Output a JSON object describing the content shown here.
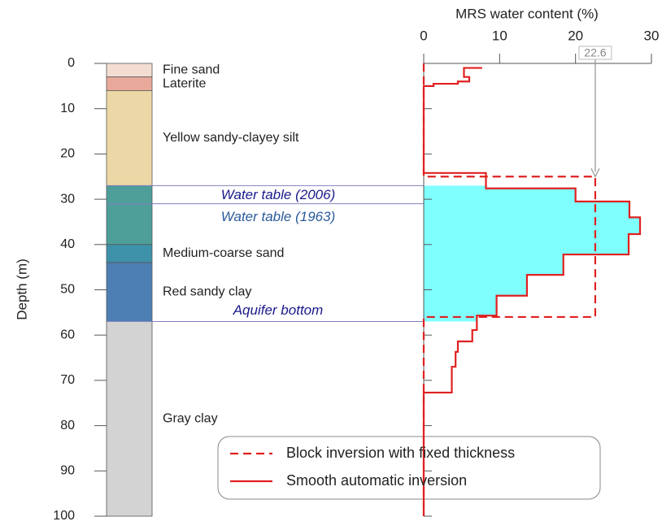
{
  "chart_data": {
    "type": "line",
    "xlabel": "MRS water content (%)",
    "ylabel": "Depth (m)",
    "xlim": [
      0,
      30
    ],
    "xticks": [
      0,
      10,
      20,
      30
    ],
    "ylim": [
      0,
      100
    ],
    "yticks": [
      0,
      10,
      20,
      30,
      40,
      50,
      60,
      70,
      80,
      90,
      100
    ],
    "y_inverted": true,
    "layers": [
      {
        "label": "Fine sand",
        "top": 0,
        "bottom": 3,
        "color": "#f3ddd3"
      },
      {
        "label": "Laterite",
        "top": 3,
        "bottom": 6,
        "color": "#e9a99a"
      },
      {
        "label": "Yellow sandy-clayey silt",
        "top": 6,
        "bottom": 27,
        "color": "#ecd8a6"
      },
      {
        "label": null,
        "top": 27,
        "bottom": 40,
        "color": "#4e9f9a"
      },
      {
        "label": "Medium-coarse sand",
        "top": 40,
        "bottom": 44,
        "color": "#3d92aa"
      },
      {
        "label": "Red sandy clay",
        "top": 44,
        "bottom": 57,
        "color": "#4d7fb5"
      },
      {
        "label": "Gray clay",
        "top": 57,
        "bottom": 100,
        "color": "#d3d3d3"
      }
    ],
    "horizons": [
      {
        "label": "Water table (2006)",
        "depth": 27,
        "color": "#1a1a8c"
      },
      {
        "label": "Water table (1963)",
        "depth": 31,
        "color": "#2a5a9a"
      },
      {
        "label": "Aquifer bottom",
        "depth": 57,
        "color": "#1a1a8c"
      }
    ],
    "fill_color": "#80ffff",
    "series": [
      {
        "name": "Block inversion with fixed thickness",
        "color": "#e02020",
        "style": "dashed",
        "depth": [
          0,
          25,
          25,
          56,
          56,
          100
        ],
        "values": [
          0,
          0,
          22.6,
          22.6,
          0,
          0
        ]
      },
      {
        "name": "Smooth automatic inversion",
        "color": "#e02020",
        "style": "solid",
        "depth": [
          1,
          1,
          3,
          3,
          4,
          4,
          4.5,
          4.5,
          5,
          5,
          24.2,
          24.2,
          27.6,
          27.6,
          30.5,
          30.5,
          34,
          34,
          37.7,
          37.7,
          42.2,
          42.2,
          46.7,
          46.7,
          51.3,
          51.3,
          55.7,
          55.7,
          58.9,
          58.9,
          61.4,
          61.4,
          63.7,
          63.7,
          67,
          67,
          72.7,
          72.7,
          100
        ],
        "values": [
          7.7,
          5.3,
          5.3,
          6.0,
          6.0,
          4.5,
          4.5,
          1.3,
          1.3,
          0,
          0,
          8.2,
          8.2,
          20,
          20,
          27.1,
          27.1,
          28.5,
          28.5,
          27,
          27,
          18.4,
          18.4,
          13.6,
          13.6,
          9.6,
          9.6,
          7,
          7,
          6.4,
          6.4,
          4.5,
          4.5,
          4.2,
          4.2,
          3.7,
          3.7,
          0,
          0
        ]
      }
    ]
  }
}
